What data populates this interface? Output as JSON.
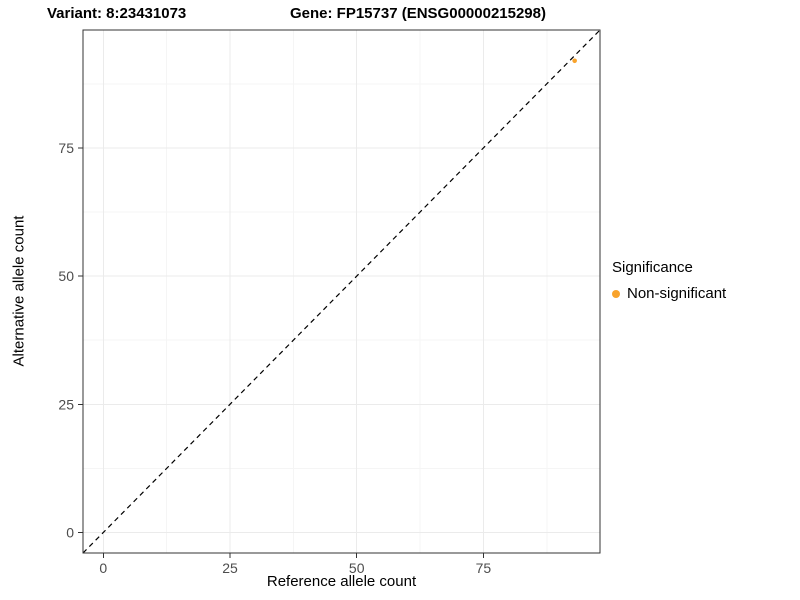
{
  "titles": {
    "variant": "Variant: 8:23431073",
    "gene": "Gene: FP15737 (ENSG00000215298)"
  },
  "legend": {
    "title": "Significance",
    "entries": [
      {
        "label": "Non-significant",
        "color": "#F8A32C"
      }
    ]
  },
  "chart_data": {
    "type": "scatter",
    "title": "Variant: 8:23431073 — Gene: FP15737 (ENSG00000215298)",
    "xlabel": "Reference allele count",
    "ylabel": "Alternative allele count",
    "xlim": [
      -4,
      98
    ],
    "ylim": [
      -4,
      98
    ],
    "x_ticks": [
      0,
      25,
      50,
      75
    ],
    "y_ticks": [
      0,
      25,
      50,
      75
    ],
    "minor_ticks": [
      12.5,
      37.5,
      62.5,
      87.5
    ],
    "grid": true,
    "legend_position": "right",
    "series": [
      {
        "name": "Non-significant",
        "color": "#F8A32C",
        "points": [
          {
            "x": 93,
            "y": 92
          }
        ]
      }
    ],
    "reference_line": {
      "kind": "identity y=x",
      "style": "dashed",
      "color": "#000000"
    },
    "colors": {
      "panel_background": "#FFFFFF",
      "grid_major": "#EBEBEB",
      "grid_minor": "#F5F5F5",
      "axis_text": "#4D4D4D",
      "panel_border": "#333333"
    }
  }
}
